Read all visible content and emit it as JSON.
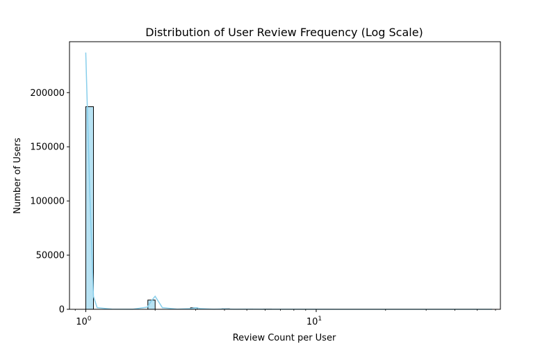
{
  "chart_data": {
    "type": "bar",
    "title": "Distribution of User Review Frequency (Log Scale)",
    "xlabel": "Review Count per User",
    "ylabel": "Number of Users",
    "x_scale": "log",
    "xlim": [
      0.85,
      63
    ],
    "ylim": [
      0,
      247000
    ],
    "y_ticks": [
      0,
      50000,
      100000,
      150000,
      200000
    ],
    "y_tick_labels": [
      "0",
      "50000",
      "100000",
      "150000",
      "200000"
    ],
    "x_major_ticks": [
      1,
      10
    ],
    "x_tick_base": "10",
    "x_tick_exponents": [
      "0",
      "1"
    ],
    "grid": false,
    "legend": "none",
    "bars": [
      {
        "x_start": 1.0,
        "x_end": 1.08,
        "value": 187000
      },
      {
        "x_start": 1.86,
        "x_end": 2.0,
        "value": 8500
      },
      {
        "x_start": 2.85,
        "x_end": 3.05,
        "value": 1400
      },
      {
        "x_start": 3.9,
        "x_end": 4.2,
        "value": 500
      },
      {
        "x_start": 4.9,
        "x_end": 5.3,
        "value": 250
      },
      {
        "x_start": 5.9,
        "x_end": 6.4,
        "value": 150
      }
    ],
    "kde": {
      "x": [
        1.0,
        1.04,
        1.08,
        1.12,
        1.3,
        1.6,
        1.85,
        1.93,
        2.0,
        2.07,
        2.15,
        2.5,
        2.85,
        3.0,
        3.15,
        3.6,
        4.0,
        4.4,
        5.0,
        6.0,
        8.0,
        12.0,
        20.0,
        35.0,
        58.0
      ],
      "y": [
        237000,
        110000,
        12000,
        1500,
        200,
        100,
        2000,
        8000,
        12000,
        7000,
        1500,
        150,
        600,
        1500,
        600,
        100,
        400,
        80,
        150,
        80,
        50,
        30,
        20,
        10,
        5
      ]
    },
    "colors": {
      "bar_fill": "#87ceeb",
      "bar_edge": "#000000",
      "kde_line": "#87ceeb",
      "axis": "#000000"
    }
  }
}
